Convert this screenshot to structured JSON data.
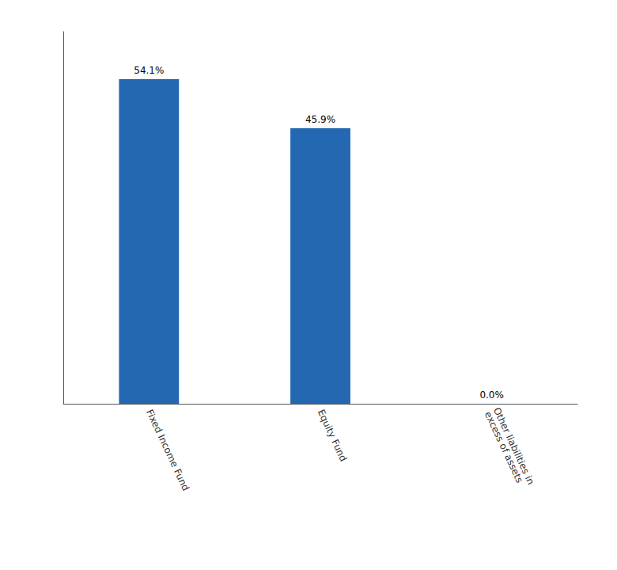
{
  "chart_data": {
    "type": "bar",
    "categories": [
      "Fixed Income Fund",
      "Equity Fund",
      "Other liabilities in\nexcess of assets"
    ],
    "values": [
      54.1,
      45.9,
      0.0
    ],
    "value_labels": [
      "54.1%",
      "45.9%",
      "0.0%"
    ],
    "color": "#2368b0",
    "ylim": [
      0,
      62
    ],
    "data_labels": true,
    "tick_labels": "x",
    "grid": false
  }
}
